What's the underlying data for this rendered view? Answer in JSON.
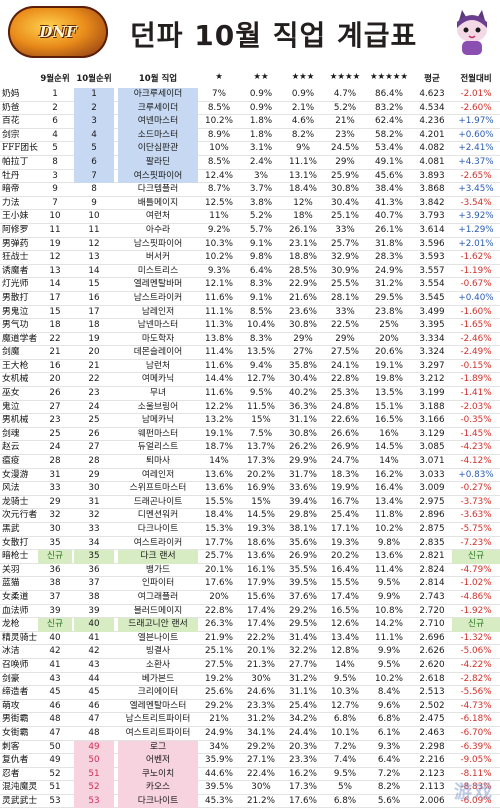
{
  "header": {
    "logo_text": "DNF",
    "title": "던파 10월 직업 계급표"
  },
  "columns": {
    "cn": "",
    "sep_rank": "9월순위",
    "oct_rank": "10월순위",
    "job": "10월 직업",
    "s1": "★",
    "s2": "★★",
    "s3": "★★★",
    "s4": "★★★★",
    "s5": "★★★★★",
    "avg": "평균",
    "delta": "전월대비"
  },
  "rows": [
    {
      "cn": "奶妈",
      "sep": "1",
      "oct": "1",
      "job": "아크루세이더",
      "s1": "7%",
      "s2": "0.9%",
      "s3": "0.9%",
      "s4": "4.7%",
      "s5": "86.4%",
      "avg": "4.623",
      "delta": "-2.01%",
      "hl": "blue",
      "dir": "down"
    },
    {
      "cn": "奶爸",
      "sep": "2",
      "oct": "2",
      "job": "크루세이더",
      "s1": "8.5%",
      "s2": "0.9%",
      "s3": "2.1%",
      "s4": "5.2%",
      "s5": "83.2%",
      "avg": "4.534",
      "delta": "-2.60%",
      "hl": "blue",
      "dir": "down"
    },
    {
      "cn": "百花",
      "sep": "6",
      "oct": "3",
      "job": "여넨마스터",
      "s1": "10.2%",
      "s2": "1.8%",
      "s3": "4.6%",
      "s4": "21%",
      "s5": "62.4%",
      "avg": "4.236",
      "delta": "+1.97%",
      "hl": "blue",
      "dir": "up"
    },
    {
      "cn": "剑宗",
      "sep": "4",
      "oct": "4",
      "job": "소드마스터",
      "s1": "8.9%",
      "s2": "1.8%",
      "s3": "8.2%",
      "s4": "23%",
      "s5": "58.2%",
      "avg": "4.201",
      "delta": "+0.60%",
      "hl": "blue",
      "dir": "up"
    },
    {
      "cn": "FFF团长",
      "sep": "5",
      "oct": "5",
      "job": "이단심판관",
      "s1": "10%",
      "s2": "3.1%",
      "s3": "9%",
      "s4": "24.5%",
      "s5": "53.4%",
      "avg": "4.082",
      "delta": "+2.41%",
      "hl": "blue",
      "dir": "up"
    },
    {
      "cn": "帕拉丁",
      "sep": "8",
      "oct": "6",
      "job": "팔라딘",
      "s1": "8.5%",
      "s2": "2.4%",
      "s3": "11.1%",
      "s4": "29%",
      "s5": "49.1%",
      "avg": "4.081",
      "delta": "+4.37%",
      "hl": "blue",
      "dir": "up"
    },
    {
      "cn": "牡丹",
      "sep": "3",
      "oct": "7",
      "job": "여스핏파이어",
      "s1": "12.4%",
      "s2": "3%",
      "s3": "13.1%",
      "s4": "25.9%",
      "s5": "45.6%",
      "avg": "3.893",
      "delta": "-2.65%",
      "hl": "blue",
      "dir": "down"
    },
    {
      "cn": "暗帝",
      "sep": "9",
      "oct": "8",
      "job": "다크템플러",
      "s1": "8.7%",
      "s2": "3.7%",
      "s3": "18.4%",
      "s4": "30.8%",
      "s5": "38.4%",
      "avg": "3.868",
      "delta": "+3.45%",
      "hl": "",
      "dir": "up"
    },
    {
      "cn": "力法",
      "sep": "7",
      "oct": "9",
      "job": "배틀메이지",
      "s1": "12.5%",
      "s2": "3.8%",
      "s3": "12%",
      "s4": "30.4%",
      "s5": "41.3%",
      "avg": "3.842",
      "delta": "-3.54%",
      "hl": "",
      "dir": "down"
    },
    {
      "cn": "王小妹",
      "sep": "10",
      "oct": "10",
      "job": "여런처",
      "s1": "11%",
      "s2": "5.2%",
      "s3": "18%",
      "s4": "25.1%",
      "s5": "40.7%",
      "avg": "3.793",
      "delta": "+3.92%",
      "hl": "",
      "dir": "up"
    },
    {
      "cn": "阿修罗",
      "sep": "11",
      "oct": "11",
      "job": "아수라",
      "s1": "9.2%",
      "s2": "5.7%",
      "s3": "26.1%",
      "s4": "33%",
      "s5": "26.1%",
      "avg": "3.614",
      "delta": "+1.29%",
      "hl": "",
      "dir": "up"
    },
    {
      "cn": "男弹药",
      "sep": "19",
      "oct": "12",
      "job": "남스핏파이어",
      "s1": "10.3%",
      "s2": "9.1%",
      "s3": "23.1%",
      "s4": "25.7%",
      "s5": "31.8%",
      "avg": "3.596",
      "delta": "+2.01%",
      "hl": "",
      "dir": "up"
    },
    {
      "cn": "狂战士",
      "sep": "12",
      "oct": "13",
      "job": "버서커",
      "s1": "10.2%",
      "s2": "9.8%",
      "s3": "18.8%",
      "s4": "32.9%",
      "s5": "28.3%",
      "avg": "3.593",
      "delta": "-1.62%",
      "hl": "",
      "dir": "down"
    },
    {
      "cn": "诱魔者",
      "sep": "13",
      "oct": "14",
      "job": "미스트리스",
      "s1": "9.3%",
      "s2": "6.4%",
      "s3": "28.5%",
      "s4": "30.9%",
      "s5": "24.9%",
      "avg": "3.557",
      "delta": "-1.19%",
      "hl": "",
      "dir": "down"
    },
    {
      "cn": "灯光师",
      "sep": "14",
      "oct": "15",
      "job": "엘레멘탈바머",
      "s1": "12.1%",
      "s2": "8.3%",
      "s3": "22.9%",
      "s4": "25.5%",
      "s5": "31.2%",
      "avg": "3.554",
      "delta": "-0.67%",
      "hl": "",
      "dir": "down"
    },
    {
      "cn": "男散打",
      "sep": "17",
      "oct": "16",
      "job": "남스트라이커",
      "s1": "11.6%",
      "s2": "9.1%",
      "s3": "21.6%",
      "s4": "28.1%",
      "s5": "29.5%",
      "avg": "3.545",
      "delta": "+0.40%",
      "hl": "",
      "dir": "up"
    },
    {
      "cn": "男鬼泣",
      "sep": "15",
      "oct": "17",
      "job": "남레인저",
      "s1": "11.1%",
      "s2": "8.5%",
      "s3": "23.6%",
      "s4": "33%",
      "s5": "23.8%",
      "avg": "3.499",
      "delta": "-1.60%",
      "hl": "",
      "dir": "down"
    },
    {
      "cn": "男气功",
      "sep": "18",
      "oct": "18",
      "job": "남넨마스터",
      "s1": "11.3%",
      "s2": "10.4%",
      "s3": "30.8%",
      "s4": "22.5%",
      "s5": "25%",
      "avg": "3.395",
      "delta": "-1.65%",
      "hl": "",
      "dir": "down"
    },
    {
      "cn": "魔道学者",
      "sep": "22",
      "oct": "19",
      "job": "마도학자",
      "s1": "13.8%",
      "s2": "8.3%",
      "s3": "29%",
      "s4": "29%",
      "s5": "20%",
      "avg": "3.334",
      "delta": "-2.46%",
      "hl": "",
      "dir": "down"
    },
    {
      "cn": "剑魔",
      "sep": "21",
      "oct": "20",
      "job": "데몬슬레이어",
      "s1": "11.4%",
      "s2": "13.5%",
      "s3": "27%",
      "s4": "27.5%",
      "s5": "20.6%",
      "avg": "3.324",
      "delta": "-2.49%",
      "hl": "",
      "dir": "down"
    },
    {
      "cn": "王大枪",
      "sep": "16",
      "oct": "21",
      "job": "남런처",
      "s1": "11.6%",
      "s2": "9.4%",
      "s3": "35.8%",
      "s4": "24.1%",
      "s5": "19.1%",
      "avg": "3.297",
      "delta": "-0.15%",
      "hl": "",
      "dir": "down"
    },
    {
      "cn": "女机械",
      "sep": "20",
      "oct": "22",
      "job": "여메카닉",
      "s1": "14.4%",
      "s2": "12.7%",
      "s3": "30.4%",
      "s4": "22.8%",
      "s5": "19.8%",
      "avg": "3.212",
      "delta": "-1.89%",
      "hl": "",
      "dir": "down"
    },
    {
      "cn": "巫女",
      "sep": "26",
      "oct": "23",
      "job": "무녀",
      "s1": "11.6%",
      "s2": "9.5%",
      "s3": "40.2%",
      "s4": "25.3%",
      "s5": "13.5%",
      "avg": "3.199",
      "delta": "-1.41%",
      "hl": "",
      "dir": "down"
    },
    {
      "cn": "鬼泣",
      "sep": "27",
      "oct": "24",
      "job": "소울브링어",
      "s1": "12.2%",
      "s2": "11.5%",
      "s3": "36.3%",
      "s4": "24.8%",
      "s5": "15.1%",
      "avg": "3.188",
      "delta": "-2.03%",
      "hl": "",
      "dir": "down"
    },
    {
      "cn": "男机械",
      "sep": "23",
      "oct": "25",
      "job": "남메카닉",
      "s1": "13.2%",
      "s2": "15%",
      "s3": "31.1%",
      "s4": "22.6%",
      "s5": "16.5%",
      "avg": "3.166",
      "delta": "-0.35%",
      "hl": "",
      "dir": "down"
    },
    {
      "cn": "剑魂",
      "sep": "25",
      "oct": "26",
      "job": "웨펀마스터",
      "s1": "19.1%",
      "s2": "7.5%",
      "s3": "30.8%",
      "s4": "26.6%",
      "s5": "16%",
      "avg": "3.129",
      "delta": "-1.45%",
      "hl": "",
      "dir": "down"
    },
    {
      "cn": "赵云",
      "sep": "24",
      "oct": "27",
      "job": "듀얼리스트",
      "s1": "18.7%",
      "s2": "13.7%",
      "s3": "26.2%",
      "s4": "26.9%",
      "s5": "14.5%",
      "avg": "3.085",
      "delta": "-4.23%",
      "hl": "",
      "dir": "down"
    },
    {
      "cn": "瘟疫",
      "sep": "28",
      "oct": "28",
      "job": "퇴마사",
      "s1": "14%",
      "s2": "17.3%",
      "s3": "29.9%",
      "s4": "24.7%",
      "s5": "14%",
      "avg": "3.071",
      "delta": "-4.12%",
      "hl": "",
      "dir": "down"
    },
    {
      "cn": "女漫游",
      "sep": "31",
      "oct": "29",
      "job": "여레인저",
      "s1": "13.6%",
      "s2": "20.2%",
      "s3": "31.7%",
      "s4": "18.3%",
      "s5": "16.2%",
      "avg": "3.033",
      "delta": "+0.83%",
      "hl": "",
      "dir": "up"
    },
    {
      "cn": "风法",
      "sep": "33",
      "oct": "30",
      "job": "스위프트마스터",
      "s1": "13.6%",
      "s2": "16.9%",
      "s3": "33.6%",
      "s4": "19.9%",
      "s5": "16.4%",
      "avg": "3.009",
      "delta": "-0.27%",
      "hl": "",
      "dir": "down"
    },
    {
      "cn": "龙骑士",
      "sep": "29",
      "oct": "31",
      "job": "드래곤나이트",
      "s1": "15.5%",
      "s2": "15%",
      "s3": "39.4%",
      "s4": "16.7%",
      "s5": "13.4%",
      "avg": "2.975",
      "delta": "-3.73%",
      "hl": "",
      "dir": "down"
    },
    {
      "cn": "次元行者",
      "sep": "32",
      "oct": "32",
      "job": "디멘션워커",
      "s1": "18.4%",
      "s2": "14.5%",
      "s3": "29.8%",
      "s4": "25.4%",
      "s5": "11.8%",
      "avg": "2.896",
      "delta": "-3.63%",
      "hl": "",
      "dir": "down"
    },
    {
      "cn": "黑武",
      "sep": "30",
      "oct": "33",
      "job": "다크나이트",
      "s1": "15.3%",
      "s2": "19.3%",
      "s3": "38.1%",
      "s4": "17.1%",
      "s5": "10.2%",
      "avg": "2.875",
      "delta": "-5.75%",
      "hl": "",
      "dir": "down"
    },
    {
      "cn": "女散打",
      "sep": "35",
      "oct": "34",
      "job": "여스트라이커",
      "s1": "17.7%",
      "s2": "18.6%",
      "s3": "35.6%",
      "s4": "19.3%",
      "s5": "9.8%",
      "avg": "2.835",
      "delta": "-7.23%",
      "hl": "",
      "dir": "down"
    },
    {
      "cn": "暗枪士",
      "sep": "신규",
      "oct": "35",
      "job": "다크 랜서",
      "s1": "25.7%",
      "s2": "13.6%",
      "s3": "26.9%",
      "s4": "20.2%",
      "s5": "13.6%",
      "avg": "2.821",
      "delta": "신규",
      "hl": "green",
      "dir": "new"
    },
    {
      "cn": "关羽",
      "sep": "36",
      "oct": "36",
      "job": "뱅가드",
      "s1": "20.1%",
      "s2": "16.1%",
      "s3": "35.5%",
      "s4": "16.4%",
      "s5": "11.4%",
      "avg": "2.824",
      "delta": "-4.79%",
      "hl": "",
      "dir": "down"
    },
    {
      "cn": "蓝猫",
      "sep": "38",
      "oct": "37",
      "job": "인파이터",
      "s1": "17.6%",
      "s2": "17.9%",
      "s3": "39.5%",
      "s4": "15.5%",
      "s5": "9.5%",
      "avg": "2.814",
      "delta": "-1.02%",
      "hl": "",
      "dir": "down"
    },
    {
      "cn": "女柔道",
      "sep": "37",
      "oct": "38",
      "job": "여그래플러",
      "s1": "20%",
      "s2": "15.6%",
      "s3": "37.6%",
      "s4": "17.4%",
      "s5": "9.9%",
      "avg": "2.743",
      "delta": "-4.86%",
      "hl": "",
      "dir": "down"
    },
    {
      "cn": "血法师",
      "sep": "39",
      "oct": "39",
      "job": "블러드메이지",
      "s1": "22.8%",
      "s2": "17.4%",
      "s3": "29.2%",
      "s4": "16.5%",
      "s5": "10.8%",
      "avg": "2.720",
      "delta": "-1.92%",
      "hl": "",
      "dir": "down"
    },
    {
      "cn": "龙枪",
      "sep": "신규",
      "oct": "40",
      "job": "드래고니안 랜서",
      "s1": "26.3%",
      "s2": "17.4%",
      "s3": "29.5%",
      "s4": "12.6%",
      "s5": "14.2%",
      "avg": "2.710",
      "delta": "신규",
      "hl": "green",
      "dir": "new"
    },
    {
      "cn": "精灵骑士",
      "sep": "40",
      "oct": "41",
      "job": "엘븐나이트",
      "s1": "21.9%",
      "s2": "22.2%",
      "s3": "31.4%",
      "s4": "13.4%",
      "s5": "11.1%",
      "avg": "2.696",
      "delta": "-1.32%",
      "hl": "",
      "dir": "down"
    },
    {
      "cn": "冰洁",
      "sep": "42",
      "oct": "42",
      "job": "빙결사",
      "s1": "25.1%",
      "s2": "20.1%",
      "s3": "32.2%",
      "s4": "12.8%",
      "s5": "9.9%",
      "avg": "2.626",
      "delta": "-5.06%",
      "hl": "",
      "dir": "down"
    },
    {
      "cn": "召唤师",
      "sep": "41",
      "oct": "43",
      "job": "소환사",
      "s1": "27.5%",
      "s2": "21.3%",
      "s3": "27.7%",
      "s4": "14%",
      "s5": "9.5%",
      "avg": "2.620",
      "delta": "-4.22%",
      "hl": "",
      "dir": "down"
    },
    {
      "cn": "剑豪",
      "sep": "43",
      "oct": "44",
      "job": "베가본드",
      "s1": "19.2%",
      "s2": "30%",
      "s3": "31.2%",
      "s4": "9.5%",
      "s5": "10.2%",
      "avg": "2.618",
      "delta": "-2.82%",
      "hl": "",
      "dir": "down"
    },
    {
      "cn": "缔造者",
      "sep": "45",
      "oct": "45",
      "job": "크리에이터",
      "s1": "25.6%",
      "s2": "24.6%",
      "s3": "31.1%",
      "s4": "10.3%",
      "s5": "8.4%",
      "avg": "2.513",
      "delta": "-5.56%",
      "hl": "",
      "dir": "down"
    },
    {
      "cn": "萌攻",
      "sep": "46",
      "oct": "46",
      "job": "엘레멘탈마스터",
      "s1": "29.2%",
      "s2": "23.3%",
      "s3": "25.4%",
      "s4": "12.7%",
      "s5": "9.6%",
      "avg": "2.502",
      "delta": "-4.73%",
      "hl": "",
      "dir": "down"
    },
    {
      "cn": "男街霸",
      "sep": "48",
      "oct": "47",
      "job": "남스트리트파이터",
      "s1": "21%",
      "s2": "31.2%",
      "s3": "34.2%",
      "s4": "6.8%",
      "s5": "6.8%",
      "avg": "2.475",
      "delta": "-6.18%",
      "hl": "",
      "dir": "down"
    },
    {
      "cn": "女街霸",
      "sep": "47",
      "oct": "48",
      "job": "여스트리트파이터",
      "s1": "24.9%",
      "s2": "34.1%",
      "s3": "24.4%",
      "s4": "10.1%",
      "s5": "6.1%",
      "avg": "2.463",
      "delta": "-6.70%",
      "hl": "",
      "dir": "down"
    },
    {
      "cn": "刺客",
      "sep": "50",
      "oct": "49",
      "job": "로그",
      "s1": "34%",
      "s2": "29.2%",
      "s3": "20.3%",
      "s4": "7.2%",
      "s5": "9.3%",
      "avg": "2.298",
      "delta": "-6.39%",
      "hl": "pink",
      "dir": "down"
    },
    {
      "cn": "复仇者",
      "sep": "49",
      "oct": "50",
      "job": "어벤저",
      "s1": "35.9%",
      "s2": "27.1%",
      "s3": "23.3%",
      "s4": "7.4%",
      "s5": "6.4%",
      "avg": "2.216",
      "delta": "-9.05%",
      "hl": "pink",
      "dir": "down"
    },
    {
      "cn": "忍者",
      "sep": "52",
      "oct": "51",
      "job": "쿠노이치",
      "s1": "44.6%",
      "s2": "22.4%",
      "s3": "16.2%",
      "s4": "9.5%",
      "s5": "7.2%",
      "avg": "2.123",
      "delta": "-8.11%",
      "hl": "pink",
      "dir": "down"
    },
    {
      "cn": "混沌魔灵",
      "sep": "51",
      "oct": "52",
      "job": "카오스",
      "s1": "39.5%",
      "s2": "30%",
      "s3": "17.3%",
      "s4": "5%",
      "s5": "8.2%",
      "avg": "2.113",
      "delta": "-8.83%",
      "hl": "pink",
      "dir": "down"
    },
    {
      "cn": "灵武武士",
      "sep": "53",
      "oct": "53",
      "job": "다크나이트",
      "s1": "45.3%",
      "s2": "21.2%",
      "s3": "17.6%",
      "s4": "6.8%",
      "s5": "5.6%",
      "avg": "2.006",
      "delta": "-6.09%",
      "hl": "pink",
      "dir": "down"
    }
  ],
  "watermark": "游戏",
  "colors": {
    "top_band": "#c7d9f2",
    "new_entry": "#d8ecc4",
    "bottom_band": "#f7d3df",
    "up": "#2a5db3",
    "down": "#d2302a"
  }
}
